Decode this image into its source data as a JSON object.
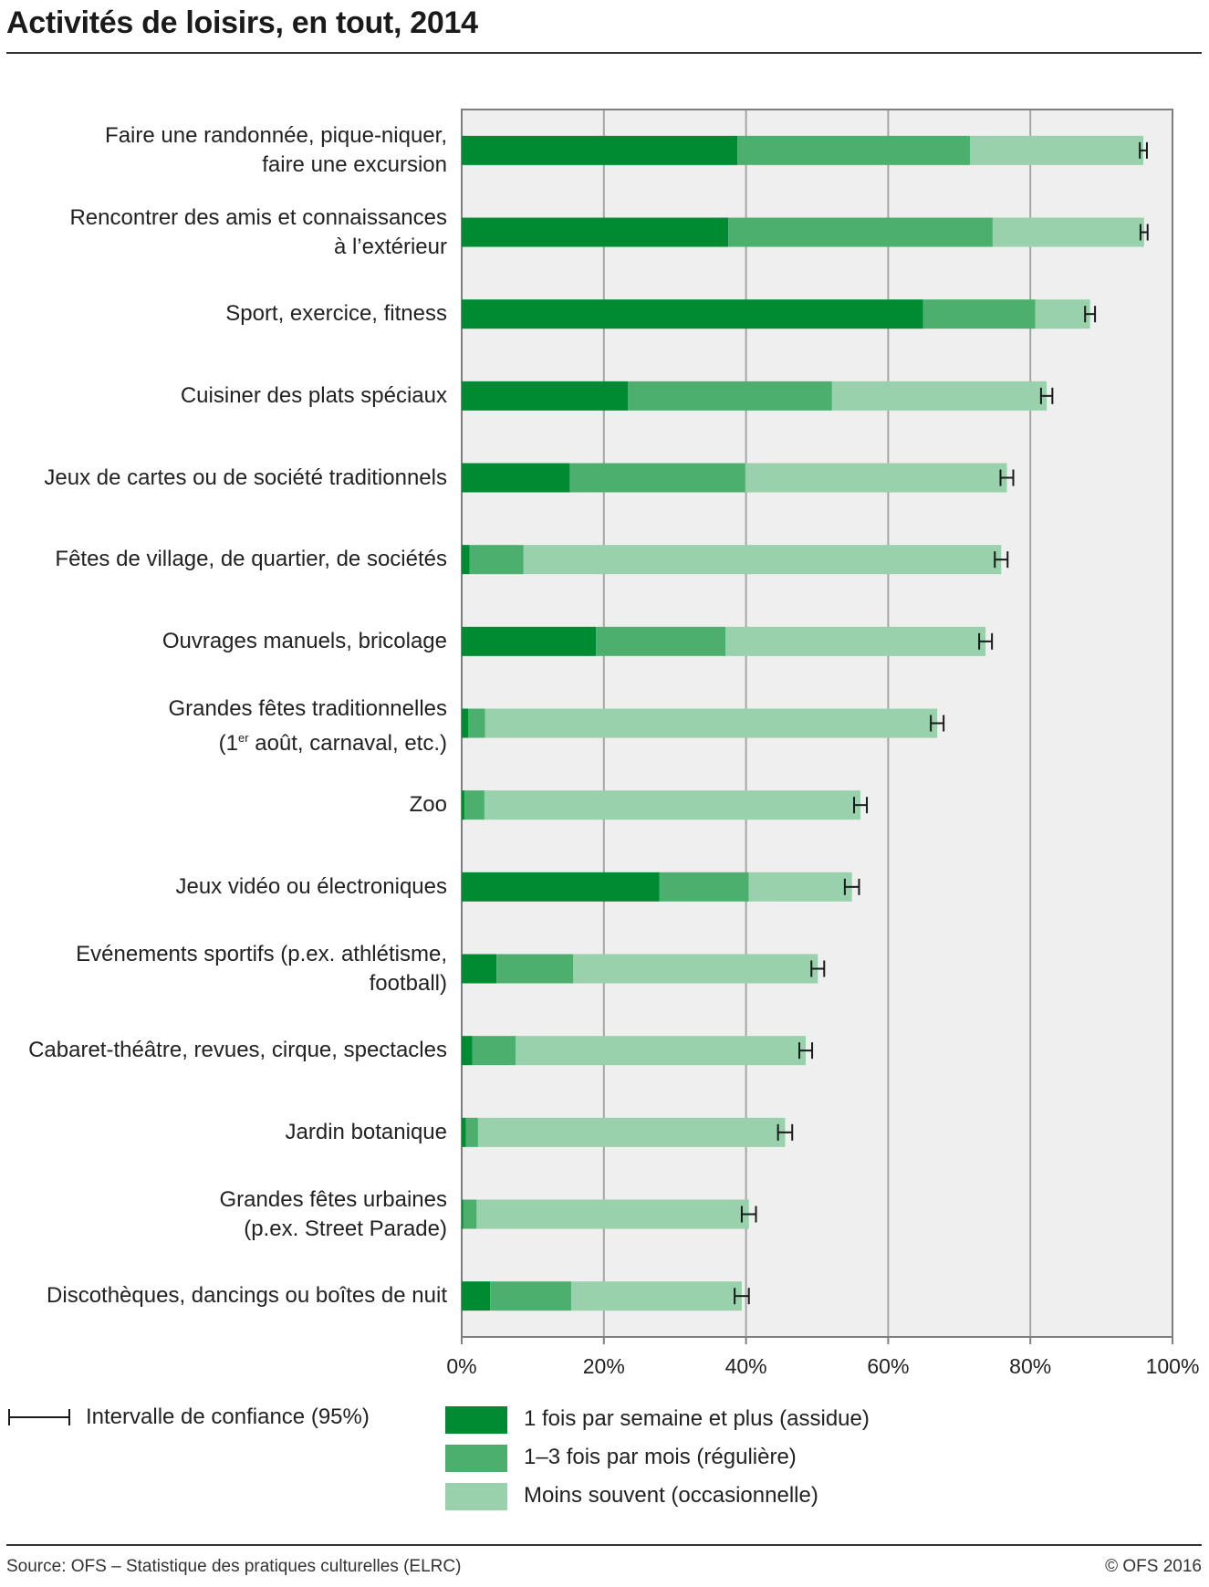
{
  "chart_data": {
    "type": "bar",
    "orientation": "horizontal",
    "stacked": true,
    "title": "Activités de loisirs, en tout, 2014",
    "categories": [
      [
        "Faire une randonnée, pique-niquer,",
        "faire une excursion"
      ],
      [
        "Rencontrer des amis et connaissances",
        "à l’extérieur"
      ],
      [
        "Sport, exercice, fitness"
      ],
      [
        "Cuisiner des plats spéciaux"
      ],
      [
        "Jeux de cartes ou de société traditionnels"
      ],
      [
        "Fêtes de village, de quartier, de sociétés"
      ],
      [
        "Ouvrages manuels, bricolage"
      ],
      [
        "Grandes fêtes traditionnelles",
        "(1er août, carnaval, etc.)"
      ],
      [
        "Zoo"
      ],
      [
        "Jeux vidéo ou électroniques"
      ],
      [
        "Evénements sportifs (p.ex. athlétisme,",
        "football)"
      ],
      [
        "Cabaret-théâtre, revues, cirque, spectacles"
      ],
      [
        "Jardin botanique"
      ],
      [
        "Grandes fêtes urbaines",
        "(p.ex. Street Parade)"
      ],
      [
        "Discothèques, dancings ou boîtes de nuit"
      ]
    ],
    "series": [
      {
        "name": "1 fois par semaine et plus (assidue)",
        "color": "#008a32",
        "values": [
          38.8,
          37.5,
          64.9,
          23.4,
          15.2,
          1.1,
          18.9,
          0.9,
          0.4,
          27.8,
          4.9,
          1.5,
          0.6,
          0.2,
          4.0
        ]
      },
      {
        "name": "1–3 fois par mois (régulière)",
        "color": "#4caf6e",
        "values": [
          32.7,
          37.2,
          15.8,
          28.7,
          24.7,
          7.6,
          18.2,
          2.4,
          2.8,
          12.6,
          10.8,
          6.1,
          1.7,
          1.9,
          11.4
        ]
      },
      {
        "name": "Moins souvent (occasionnelle)",
        "color": "#98d1ab",
        "values": [
          24.4,
          21.3,
          7.7,
          30.2,
          36.8,
          67.2,
          36.6,
          63.6,
          52.9,
          14.5,
          34.4,
          40.8,
          43.2,
          38.3,
          24.0
        ]
      }
    ],
    "ci_half_width": [
      0.5,
      0.5,
      0.7,
      0.8,
      0.9,
      0.9,
      0.9,
      0.9,
      0.9,
      1.0,
      0.9,
      0.9,
      1.0,
      1.0,
      1.0
    ],
    "xlim": [
      0,
      100
    ],
    "xticks": [
      "0%",
      "20%",
      "40%",
      "60%",
      "80%",
      "100%"
    ],
    "grid": true,
    "legend": {
      "ci_label": "Intervalle de confiance (95%)",
      "placement": "bottom"
    }
  },
  "colors": {
    "background": "#efefef",
    "grid": "#a5a5a5",
    "axis": "#7f7f7f",
    "errorbar": "#1a1a1a"
  },
  "source": "Source: OFS – Statistique des pratiques culturelles (ELRC)",
  "copyright": "© OFS 2016"
}
